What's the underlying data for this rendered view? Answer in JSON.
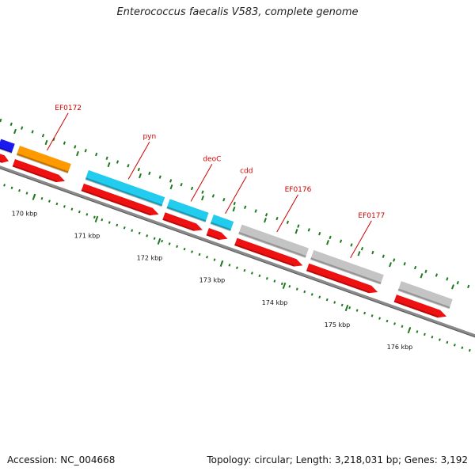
{
  "title": "Enterococcus faecalis V583, complete genome",
  "footer": {
    "accession": "Accession: NC_004668",
    "summary": "Topology: circular; Length: 3,218,031 bp; Genes: 3,192"
  },
  "colors": {
    "backbone": "#8a8a8a",
    "cds": "#ee1111",
    "tick": "#1f7a1f",
    "label": "#cc0000",
    "orange_gene": "#ff9900",
    "cyan_gene": "#22ccee",
    "gray_gene": "#c4c4c4",
    "blue_gene": "#1a1aee"
  },
  "genes": [
    {
      "label": "",
      "start_kbp": 169.2,
      "end_kbp": 169.5,
      "color": "blue"
    },
    {
      "label": "EF0172",
      "start_kbp": 169.5,
      "end_kbp": 170.4,
      "color": "orange"
    },
    {
      "label": "pyn",
      "start_kbp": 170.6,
      "end_kbp": 171.9,
      "color": "cyan"
    },
    {
      "label": "deoC",
      "start_kbp": 171.9,
      "end_kbp": 172.6,
      "color": "cyan"
    },
    {
      "label": "cdd",
      "start_kbp": 172.6,
      "end_kbp": 173.0,
      "color": "cyan"
    },
    {
      "label": "EF0176",
      "start_kbp": 173.05,
      "end_kbp": 174.2,
      "color": "gray"
    },
    {
      "label": "EF0177",
      "start_kbp": 174.2,
      "end_kbp": 175.4,
      "color": "gray"
    },
    {
      "label": "",
      "start_kbp": 175.6,
      "end_kbp": 176.5,
      "color": "gray"
    }
  ],
  "cds": [
    {
      "start_kbp": 169.2,
      "end_kbp": 169.5
    },
    {
      "start_kbp": 169.5,
      "end_kbp": 170.4
    },
    {
      "start_kbp": 170.6,
      "end_kbp": 171.9
    },
    {
      "start_kbp": 171.9,
      "end_kbp": 172.6
    },
    {
      "start_kbp": 172.6,
      "end_kbp": 173.0
    },
    {
      "start_kbp": 173.05,
      "end_kbp": 174.2
    },
    {
      "start_kbp": 174.2,
      "end_kbp": 175.4
    },
    {
      "start_kbp": 175.6,
      "end_kbp": 176.5
    }
  ],
  "ticks": [
    {
      "kbp": 170,
      "label": "170 kbp"
    },
    {
      "kbp": 171,
      "label": "171 kbp"
    },
    {
      "kbp": 172,
      "label": "172 kbp"
    },
    {
      "kbp": 173,
      "label": "173 kbp"
    },
    {
      "kbp": 174,
      "label": "174 kbp"
    },
    {
      "kbp": 175,
      "label": "175 kbp"
    },
    {
      "kbp": 176,
      "label": "176 kbp"
    }
  ]
}
